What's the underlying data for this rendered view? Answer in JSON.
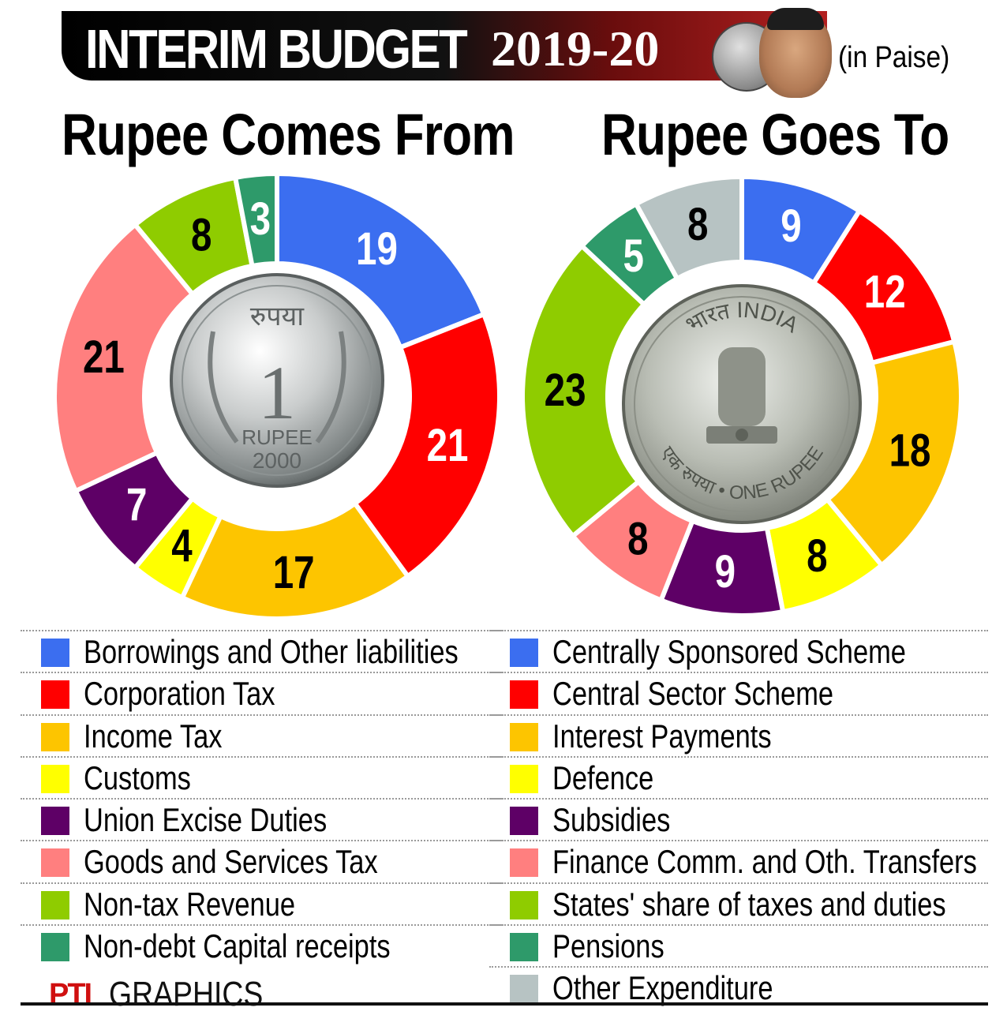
{
  "header": {
    "title": "INTERIM BUDGET",
    "year": "2019-20",
    "unit": "(in Paise)"
  },
  "chart_data": [
    {
      "type": "pie",
      "title": "Rupee Comes From",
      "unit": "paise",
      "categories": [
        "Borrowings and Other liabilities",
        "Corporation Tax",
        "Income Tax",
        "Customs",
        "Union Excise Duties",
        "Goods and Services Tax",
        "Non-tax Revenue",
        "Non-debt Capital receipts"
      ],
      "values": [
        19,
        21,
        17,
        4,
        7,
        21,
        8,
        3
      ],
      "colors": [
        "#3b6ef0",
        "#ff0000",
        "#fdc500",
        "#ffff00",
        "#5e0066",
        "#ff7f7f",
        "#8fcc00",
        "#2e9a6a"
      ],
      "center_image": "rupee-coin-2000"
    },
    {
      "type": "pie",
      "title": "Rupee Goes To",
      "unit": "paise",
      "categories": [
        "Centrally Sponsored Scheme",
        "Central Sector Scheme",
        "Interest Payments",
        "Defence",
        "Subsidies",
        "Finance Comm. and Oth. Transfers",
        "States' share of taxes and duties",
        "Pensions",
        "Other Expenditure"
      ],
      "values": [
        9,
        12,
        18,
        8,
        9,
        8,
        23,
        5,
        8
      ],
      "colors": [
        "#3b6ef0",
        "#ff0000",
        "#fdc500",
        "#ffff00",
        "#5e0066",
        "#ff7f7f",
        "#8fcc00",
        "#2e9a6a",
        "#b7c3c3"
      ],
      "center_image": "rupee-coin-india-emblem"
    }
  ],
  "coin_left": {
    "top": "रुपया",
    "denomination": "1",
    "word": "RUPEE",
    "year": "2000"
  },
  "coin_right": {
    "top": "भारत INDIA",
    "bottom": "एक रुपया • ONE RUPEE"
  },
  "credit": {
    "logo": "PTI",
    "text": "GRAPHICS"
  }
}
